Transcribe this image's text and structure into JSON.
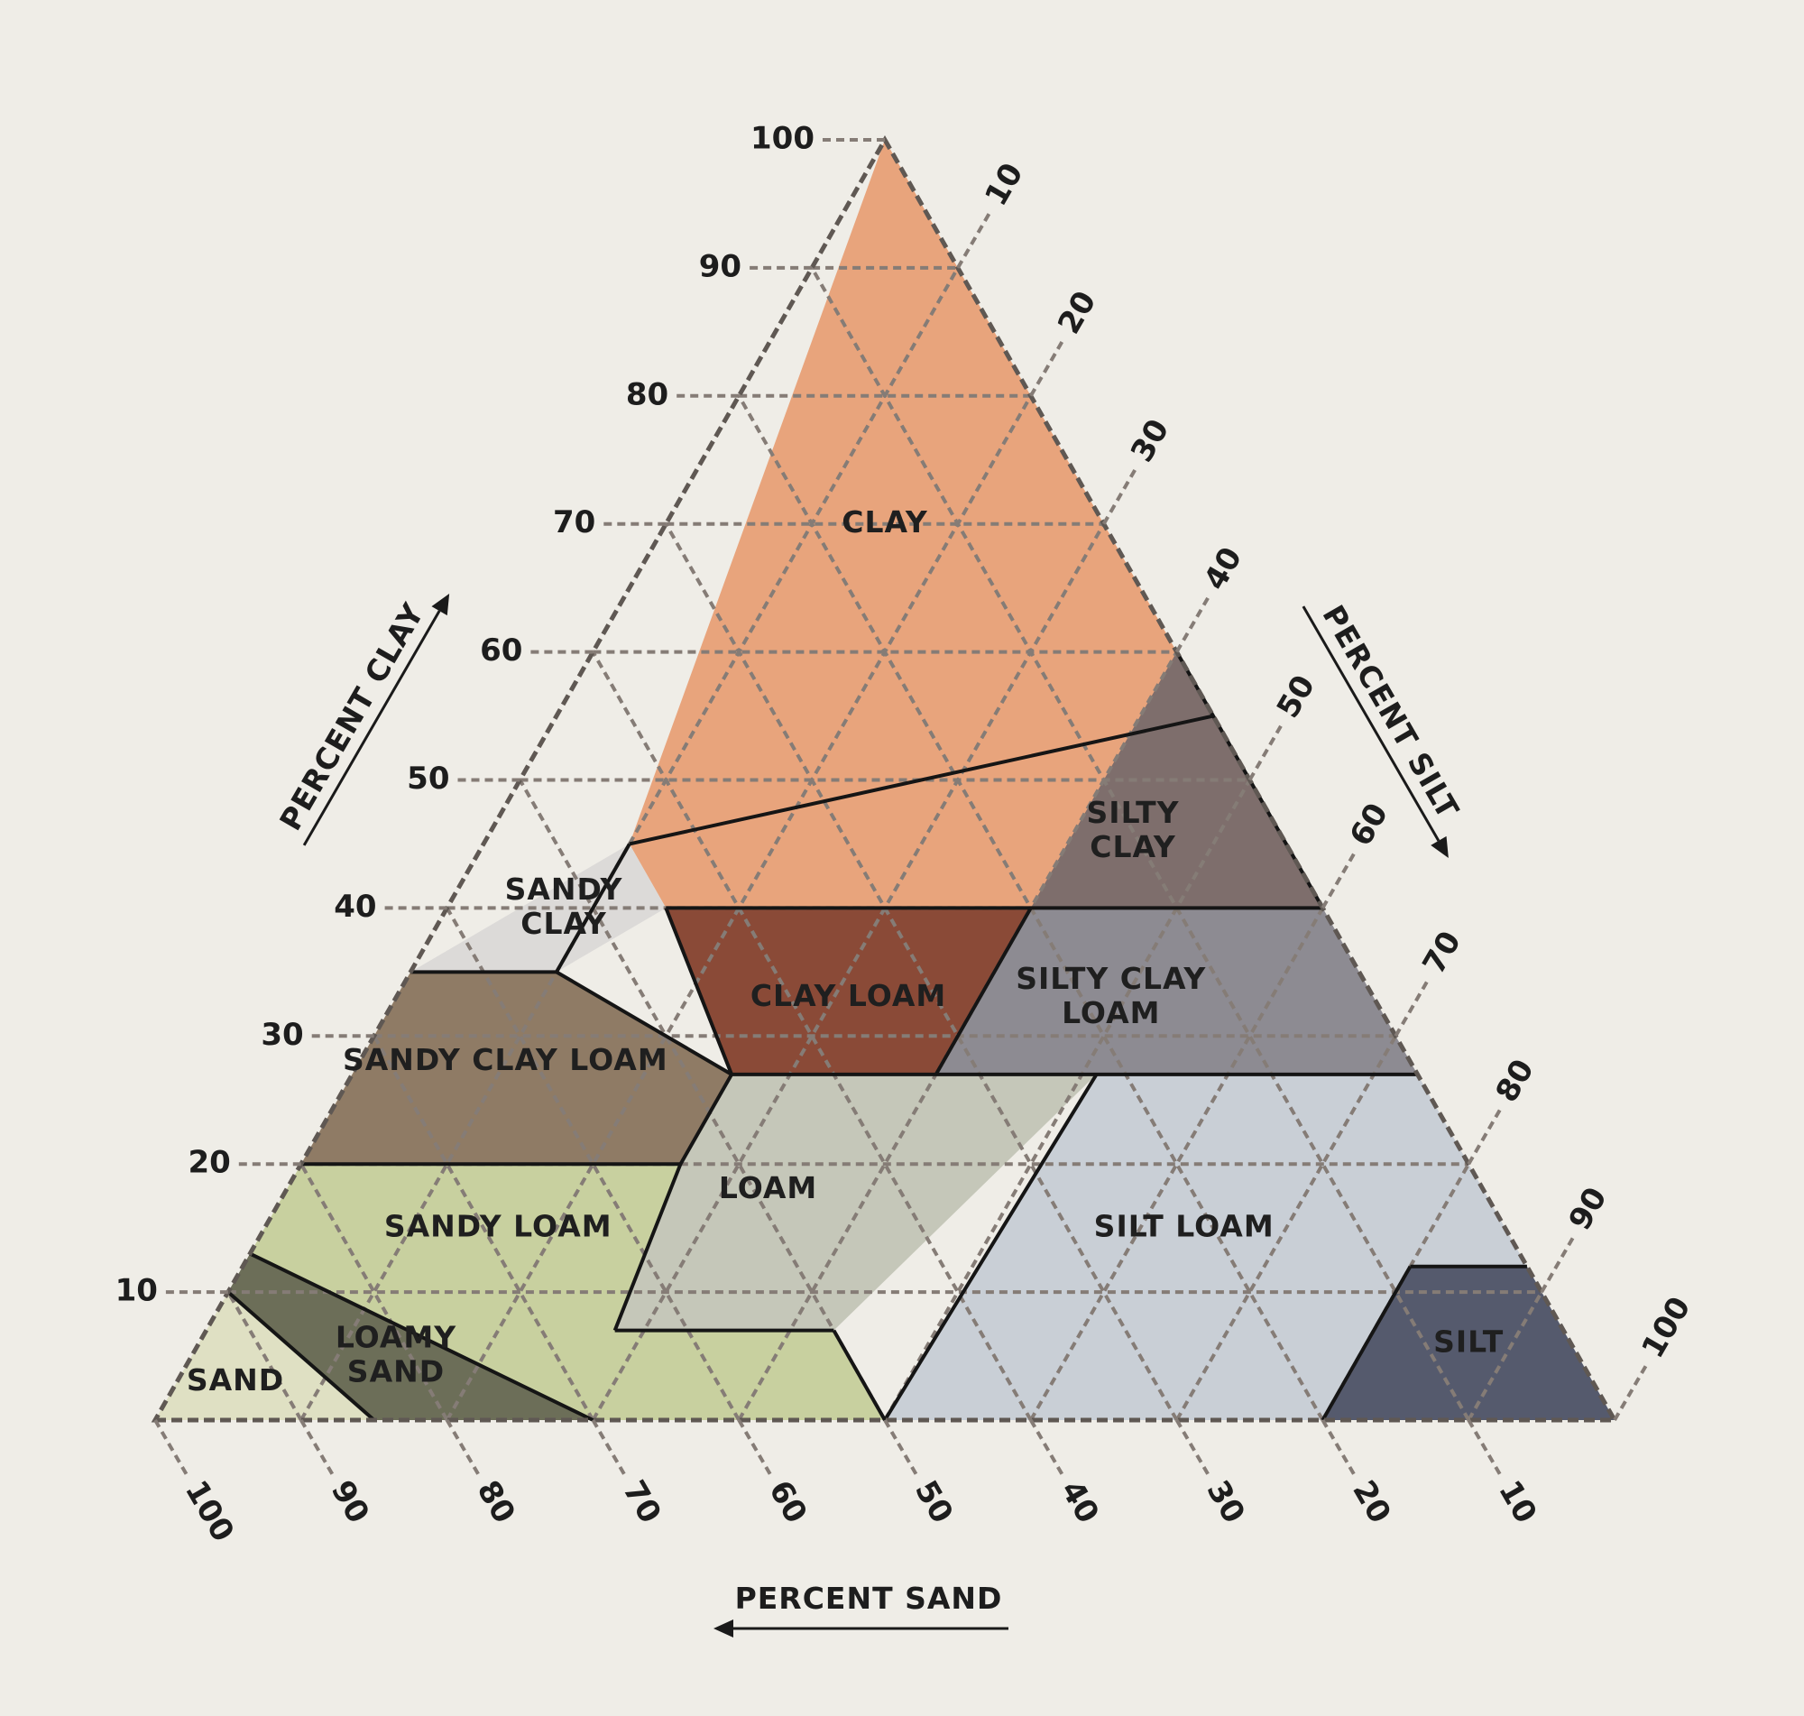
{
  "diagram": {
    "axes": {
      "clay": {
        "title": "PERCENT CLAY",
        "ticks": [
          "10",
          "20",
          "30",
          "40",
          "50",
          "60",
          "70",
          "80",
          "90",
          "100"
        ]
      },
      "silt": {
        "title": "PERCENT SILT",
        "ticks": [
          "10",
          "20",
          "30",
          "40",
          "50",
          "60",
          "70",
          "80",
          "90",
          "100"
        ]
      },
      "sand": {
        "title": "PERCENT SAND",
        "ticks": [
          "100",
          "90",
          "80",
          "70",
          "60",
          "50",
          "40",
          "30",
          "20",
          "10"
        ]
      }
    },
    "regions": [
      {
        "id": "clay",
        "lines": [
          "CLAY"
        ],
        "color": "#e8a47c"
      },
      {
        "id": "sandy-clay",
        "lines": [
          "SANDY",
          "CLAY"
        ],
        "color": "#dcdad8"
      },
      {
        "id": "silty-clay",
        "lines": [
          "SILTY",
          "CLAY"
        ],
        "color": "#7e6e6c"
      },
      {
        "id": "clay-loam",
        "lines": [
          "CLAY LOAM"
        ],
        "color": "#8a4a37"
      },
      {
        "id": "silty-clay-loam",
        "lines": [
          "SILTY CLAY",
          "LOAM"
        ],
        "color": "#8d8b92"
      },
      {
        "id": "sandy-clay-loam",
        "lines": [
          "SANDY CLAY LOAM"
        ],
        "color": "#8f7b65"
      },
      {
        "id": "loam",
        "lines": [
          "LOAM"
        ],
        "color": "#c5c7b9"
      },
      {
        "id": "silt-loam",
        "lines": [
          "SILT LOAM"
        ],
        "color": "#c9cfd6"
      },
      {
        "id": "sandy-loam",
        "lines": [
          "SANDY LOAM"
        ],
        "color": "#c8d09f"
      },
      {
        "id": "loamy-sand",
        "lines": [
          "LOAMY",
          "SAND"
        ],
        "color": "#6c6e58"
      },
      {
        "id": "sand",
        "lines": [
          "SAND"
        ],
        "color": "#dfe0c3"
      },
      {
        "id": "silt",
        "lines": [
          "SILT"
        ],
        "color": "#555a6d"
      }
    ],
    "grid_color": "#857c76",
    "boundary_color": "#151515",
    "background": "#efede7"
  }
}
